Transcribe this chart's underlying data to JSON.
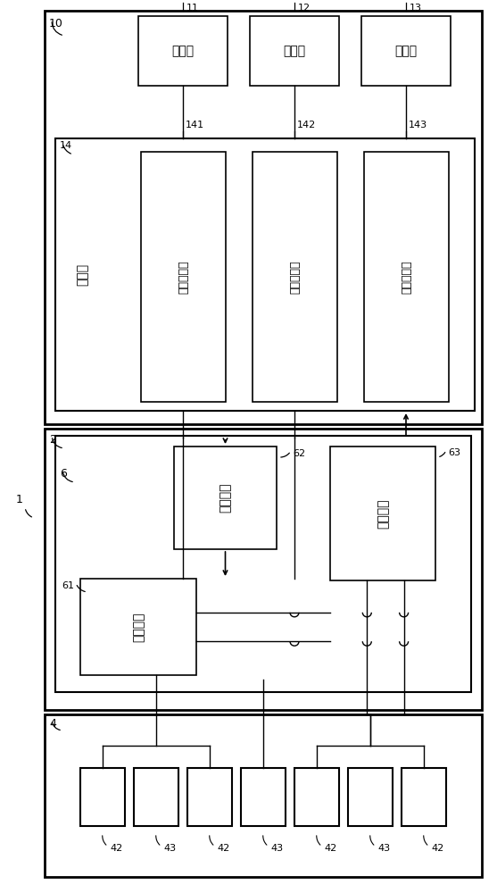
{
  "bg_color": "#ffffff",
  "line_color": "#000000",
  "labels": {
    "n10": "10",
    "n1": "1",
    "n2": "2",
    "n4": "4",
    "n6": "6",
    "n11": "11",
    "n12": "12",
    "n13": "13",
    "n14": "14",
    "n141": "141",
    "n142": "142",
    "n143": "143",
    "n61": "61",
    "n62": "62",
    "n63": "63",
    "t_caozuo": "操作部",
    "t_xianshi": "显示部",
    "t_cunchu": "存储部",
    "t_kongzhi": "控制部",
    "t_shofa": "收发控制部",
    "t_xiebo": "谐波处理部",
    "t_xinhao": "信号处理部",
    "t_fasong": "发送电路",
    "t_jieshou": "接收电路",
    "t_xuanze": "选择电路",
    "n42": "42",
    "n43": "43"
  }
}
